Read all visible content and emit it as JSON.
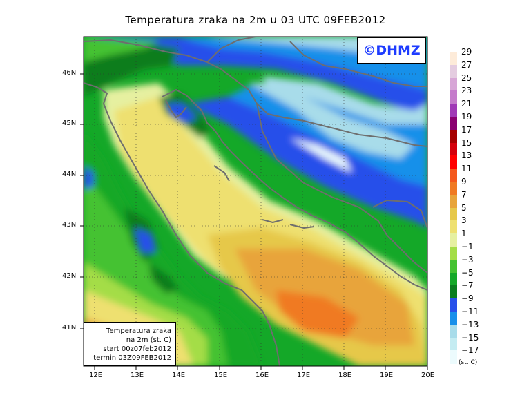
{
  "title": "Temperatura zraka na 2m u 03 UTC 09FEB2012",
  "logo": "©DHMZ",
  "info": {
    "line1": "Temperatura zraka",
    "line2": "na 2m (st. C)",
    "line3": "start 00z07feb2012",
    "line4": "termin 03Z09FEB2012"
  },
  "lat_labels": [
    "46N",
    "45N",
    "44N",
    "43N",
    "42N",
    "41N"
  ],
  "lon_labels": [
    "12E",
    "13E",
    "14E",
    "15E",
    "16E",
    "17E",
    "18E",
    "19E",
    "20E"
  ],
  "legend": {
    "units": "(st. C)",
    "labels": [
      "29",
      "27",
      "25",
      "23",
      "21",
      "19",
      "17",
      "15",
      "13",
      "11",
      "9",
      "7",
      "5",
      "3",
      "1",
      "−1",
      "−3",
      "−5",
      "−7",
      "−9",
      "−11",
      "−13",
      "−15",
      "−17"
    ],
    "colors": [
      "#fdebd9",
      "#e4cce0",
      "#d7a6d6",
      "#c57ccb",
      "#a03ab6",
      "#8a0070",
      "#a50000",
      "#d4000b",
      "#ff0000",
      "#f4581c",
      "#f07a22",
      "#e8a43a",
      "#e6c84a",
      "#eee070",
      "#e6f0a0",
      "#a4dd46",
      "#44c231",
      "#14a828",
      "#0a7d1e",
      "#2850ea",
      "#1890ea",
      "#a8dcea",
      "#c4ecf2",
      "#ecfbfd"
    ]
  }
}
